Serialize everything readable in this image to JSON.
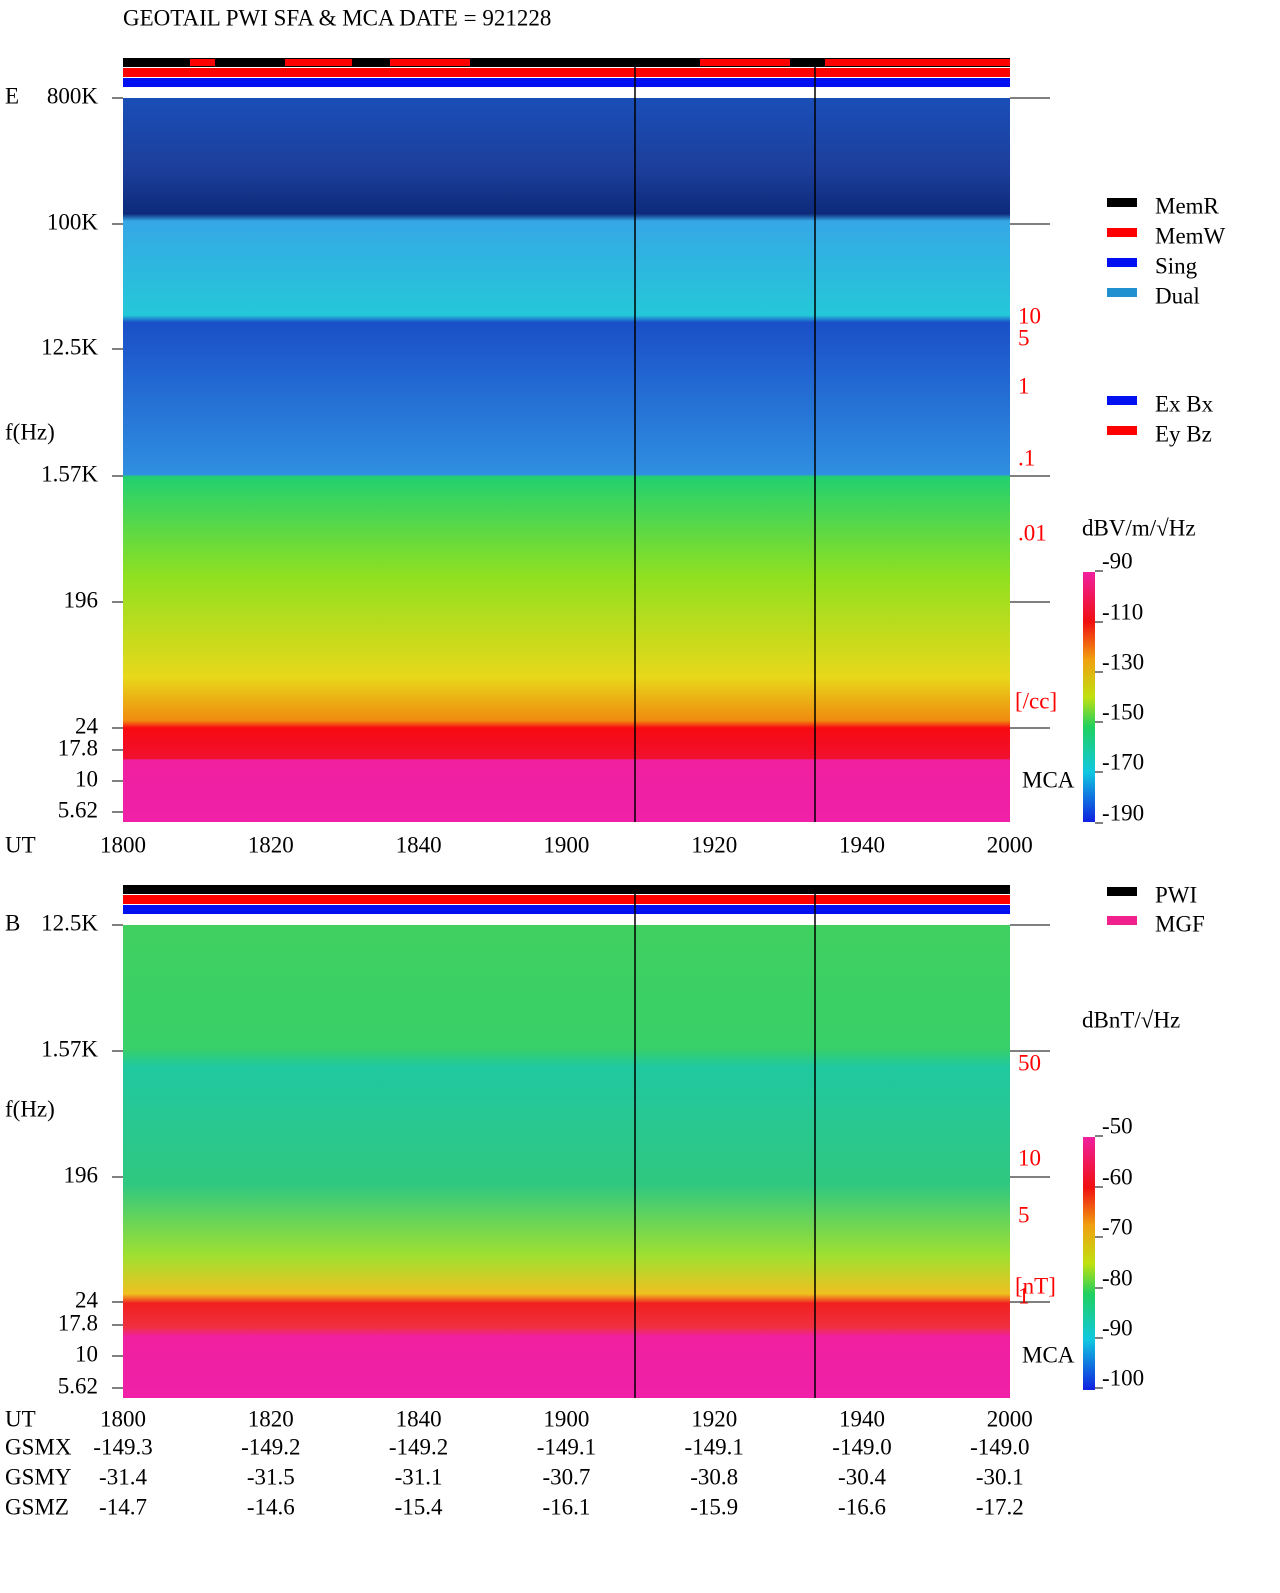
{
  "title": "GEOTAIL  PWI SFA & MCA   DATE = 921228",
  "panel_e": {
    "label": "E",
    "axis_label": "f(Hz)",
    "freq_ticks": [
      "800K",
      "100K",
      "12.5K",
      "1.57K",
      "196",
      "24",
      "17.8",
      "10",
      "5.62"
    ],
    "ut_label": "UT",
    "ut_ticks": [
      "1800",
      "1820",
      "1840",
      "1900",
      "1920",
      "1940",
      "2000"
    ],
    "right_ticks": [
      "10",
      "5",
      "1",
      ".1",
      ".01"
    ],
    "right_unit": "[/cc]",
    "mca": "MCA",
    "colorbar_unit": "dBV/m/√Hz",
    "colorbar_ticks": [
      "-90",
      "-110",
      "-130",
      "-150",
      "-170",
      "-190"
    ]
  },
  "panel_b": {
    "label": "B",
    "axis_label": "f(Hz)",
    "freq_ticks": [
      "12.5K",
      "1.57K",
      "196",
      "24",
      "17.8",
      "10",
      "5.62"
    ],
    "ut_label": "UT",
    "ut_ticks": [
      "1800",
      "1820",
      "1840",
      "1900",
      "1920",
      "1940",
      "2000"
    ],
    "right_ticks": [
      "50",
      "10",
      "5",
      "1"
    ],
    "right_unit": "[nT]",
    "mca": "MCA",
    "colorbar_unit": "dBnT/√Hz",
    "colorbar_ticks": [
      "-50",
      "-60",
      "-70",
      "-80",
      "-90",
      "-100"
    ]
  },
  "legend_mode": [
    "MemR",
    "MemW",
    "Sing",
    "Dual"
  ],
  "legend_comp": [
    "Ex Bx",
    "Ey Bz"
  ],
  "legend_src": [
    "PWI",
    "MGF"
  ],
  "orbit": [
    {
      "label": "GSMX",
      "values": [
        "-149.3",
        "-149.2",
        "-149.2",
        "-149.1",
        "-149.1",
        "-149.0",
        "-149.0"
      ]
    },
    {
      "label": "GSMY",
      "values": [
        "-31.4",
        "-31.5",
        "-31.1",
        "-30.7",
        "-30.8",
        "-30.4",
        "-30.1"
      ]
    },
    {
      "label": "GSMZ",
      "values": [
        "-14.7",
        "-14.6",
        "-15.4",
        "-16.1",
        "-15.9",
        "-16.6",
        "-17.2"
      ]
    }
  ]
}
